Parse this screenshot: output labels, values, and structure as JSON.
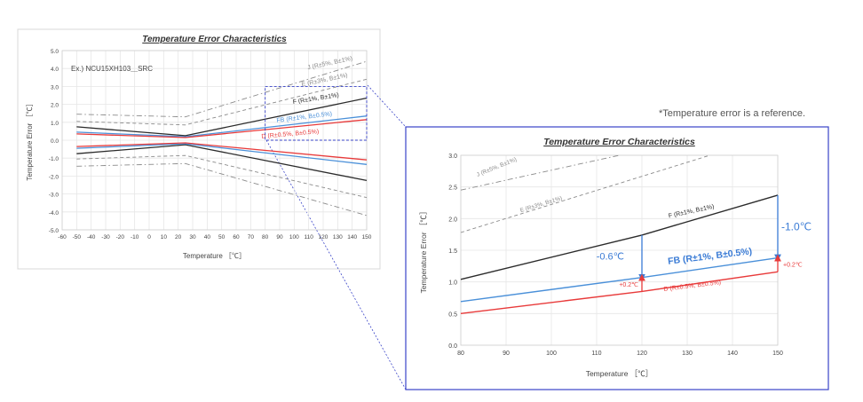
{
  "note": "*Temperature error is a reference.",
  "colors": {
    "black": "#2b2b2b",
    "blue": "#4a90d9",
    "red": "#e83a3a",
    "gray": "#8a8a8a",
    "accent_blue": "#3a7bd5",
    "frame": "#3a44c8"
  },
  "chart_data": [
    {
      "type": "line",
      "title": "Temperature Error Characteristics",
      "xlabel": "Temperature ［℃］",
      "ylabel": "Temperature Error ［℃］",
      "xlim": [
        -60,
        150
      ],
      "ylim": [
        -5.0,
        5.0
      ],
      "xticks": [
        "-60",
        "-50",
        "-40",
        "-30",
        "-20",
        "-10",
        "0",
        "10",
        "20",
        "30",
        "40",
        "50",
        "60",
        "70",
        "80",
        "90",
        "100",
        "110",
        "120",
        "130",
        "140",
        "150"
      ],
      "yticks": [
        "5.0",
        "4.0",
        "3.0",
        "2.0",
        "1.0",
        "0.0",
        "-1.0",
        "-2.0",
        "-3.0",
        "-4.0",
        "-5.0"
      ],
      "grid": true,
      "example_label": "Ex.) NCU15XH103＿SRC",
      "series": [
        {
          "name": "J (R±5%, B±1%)",
          "style": "dashdot",
          "color": "gray",
          "upper": [
            [
              -50,
              1.45
            ],
            [
              25,
              1.3
            ],
            [
              150,
              4.4
            ]
          ],
          "lower": [
            [
              -50,
              -1.45
            ],
            [
              25,
              -1.3
            ],
            [
              150,
              -4.2
            ]
          ]
        },
        {
          "name": "E (R±3%, B±1%)",
          "style": "dash",
          "color": "gray",
          "upper": [
            [
              -50,
              1.05
            ],
            [
              25,
              0.85
            ],
            [
              150,
              3.4
            ]
          ],
          "lower": [
            [
              -50,
              -1.05
            ],
            [
              25,
              -0.85
            ],
            [
              150,
              -3.2
            ]
          ]
        },
        {
          "name": "F (R±1%, B±1%)",
          "style": "solid",
          "color": "black",
          "upper": [
            [
              -50,
              0.75
            ],
            [
              25,
              0.25
            ],
            [
              150,
              2.35
            ]
          ],
          "lower": [
            [
              -50,
              -0.75
            ],
            [
              25,
              -0.25
            ],
            [
              150,
              -2.25
            ]
          ]
        },
        {
          "name": "FB (R±1%, B±0.5%)",
          "style": "solid",
          "color": "blue",
          "upper": [
            [
              -50,
              0.45
            ],
            [
              25,
              0.2
            ],
            [
              150,
              1.35
            ]
          ],
          "lower": [
            [
              -50,
              -0.45
            ],
            [
              25,
              -0.2
            ],
            [
              150,
              -1.35
            ]
          ]
        },
        {
          "name": "D (R±0.5%, B±0.5%)",
          "style": "solid",
          "color": "red",
          "upper": [
            [
              -50,
              0.35
            ],
            [
              25,
              0.15
            ],
            [
              150,
              1.15
            ]
          ],
          "lower": [
            [
              -50,
              -0.35
            ],
            [
              25,
              -0.15
            ],
            [
              150,
              -1.1
            ]
          ]
        }
      ]
    },
    {
      "type": "line",
      "title": "Temperature Error Characteristics",
      "xlabel": "Temperature ［℃］",
      "ylabel": "Temperature Error ［℃］",
      "xlim": [
        80,
        150
      ],
      "ylim": [
        0.0,
        3.0
      ],
      "xticks": [
        "80",
        "90",
        "100",
        "110",
        "120",
        "130",
        "140",
        "150"
      ],
      "yticks": [
        "3.0",
        "2.5",
        "2.0",
        "1.5",
        "1.0",
        "0.5",
        "0.0"
      ],
      "grid": true,
      "series": [
        {
          "name": "J (R±5%, B±1%)",
          "style": "dashdot",
          "color": "gray",
          "points": [
            [
              80,
              2.45
            ],
            [
              115,
              3.0
            ]
          ]
        },
        {
          "name": "E (R±3%, B±1%)",
          "style": "dash",
          "color": "gray",
          "points": [
            [
              80,
              1.78
            ],
            [
              135,
              3.0
            ]
          ]
        },
        {
          "name": "F (R±1%, B±1%)",
          "style": "solid",
          "color": "black",
          "points": [
            [
              80,
              1.04
            ],
            [
              120,
              1.74
            ],
            [
              150,
              2.37
            ]
          ]
        },
        {
          "name": "FB (R±1%, B±0.5%)",
          "style": "solid",
          "color": "blue",
          "points": [
            [
              80,
              0.69
            ],
            [
              120,
              1.07
            ],
            [
              150,
              1.38
            ]
          ]
        },
        {
          "name": "D (R±0.5%, B±0.5%)",
          "style": "solid",
          "color": "red",
          "points": [
            [
              80,
              0.5
            ],
            [
              120,
              0.85
            ],
            [
              150,
              1.16
            ]
          ]
        }
      ],
      "annotations": [
        {
          "text": "-0.6℃",
          "x": 120,
          "from": 1.74,
          "to": 1.07,
          "color": "accent_blue"
        },
        {
          "text": "+0.2℃",
          "x": 120,
          "from": 0.85,
          "to": 1.07,
          "color": "red"
        },
        {
          "text": "-1.0℃",
          "x": 150,
          "from": 2.37,
          "to": 1.38,
          "color": "accent_blue"
        },
        {
          "text": "+0.2℃",
          "x": 150,
          "from": 1.16,
          "to": 1.38,
          "color": "red"
        }
      ]
    }
  ]
}
